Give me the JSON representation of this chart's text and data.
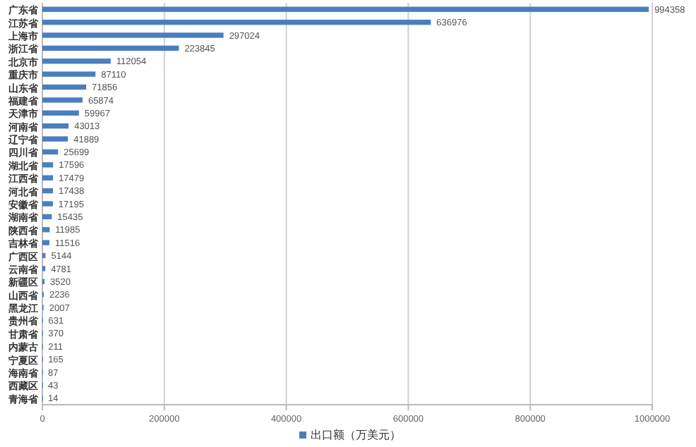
{
  "chart_data": {
    "type": "bar",
    "orientation": "horizontal",
    "categories": [
      "广东省",
      "江苏省",
      "上海市",
      "浙江省",
      "北京市",
      "重庆市",
      "山东省",
      "福建省",
      "天津市",
      "河南省",
      "辽宁省",
      "四川省",
      "湖北省",
      "江西省",
      "河北省",
      "安徽省",
      "湖南省",
      "陕西省",
      "吉林省",
      "广西区",
      "云南省",
      "新疆区",
      "山西省",
      "黑龙江",
      "贵州省",
      "甘肃省",
      "内蒙古",
      "宁夏区",
      "海南省",
      "西藏区",
      "青海省"
    ],
    "series": [
      {
        "name": "出口额（万美元）",
        "color": "#4a7ebf",
        "values": [
          994358,
          636976,
          297024,
          223845,
          112054,
          87110,
          71856,
          65874,
          59967,
          43013,
          41889,
          25699,
          17596,
          17479,
          17438,
          17195,
          15435,
          11985,
          11516,
          5144,
          4781,
          3520,
          2236,
          2007,
          631,
          370,
          211,
          165,
          87,
          43,
          14
        ]
      }
    ],
    "xlim": [
      0,
      1000000
    ],
    "xticks": [
      0,
      200000,
      400000,
      600000,
      800000,
      1000000
    ],
    "grid": "x",
    "legend": "bottom",
    "data_labels": true
  }
}
